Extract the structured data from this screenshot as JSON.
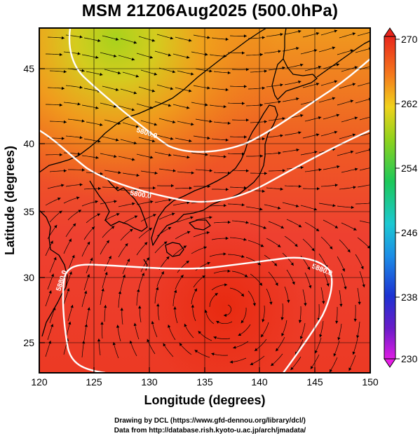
{
  "title": "MSM 21Z06Aug2025 (500.0hPa)",
  "axes": {
    "xlabel": "Longitude (degrees)",
    "ylabel": "Latitude  (degrees)",
    "xticks": [
      "120",
      "125",
      "130",
      "135",
      "140",
      "145",
      "150"
    ],
    "yticks": [
      "25",
      "30",
      "35",
      "40",
      "45"
    ]
  },
  "colorbar": {
    "ticks": [
      "270",
      "262",
      "254",
      "246",
      "238",
      "230"
    ],
    "range": [
      230,
      270
    ]
  },
  "contours": {
    "labels": [
      "5800.0",
      "5800.0",
      "5880.0",
      "5880.0"
    ]
  },
  "credits": {
    "line1": "Drawing by DCL (https://www.gfd-dennou.org/library/dcl/)",
    "line2": "Data from http://database.rish.kyoto-u.ac.jp/arch/jmadata/"
  },
  "colors": {
    "warm": "#ee3322",
    "mid": "#f07a1a",
    "cool": "#b7d21f",
    "contour": "#ffffff"
  }
}
